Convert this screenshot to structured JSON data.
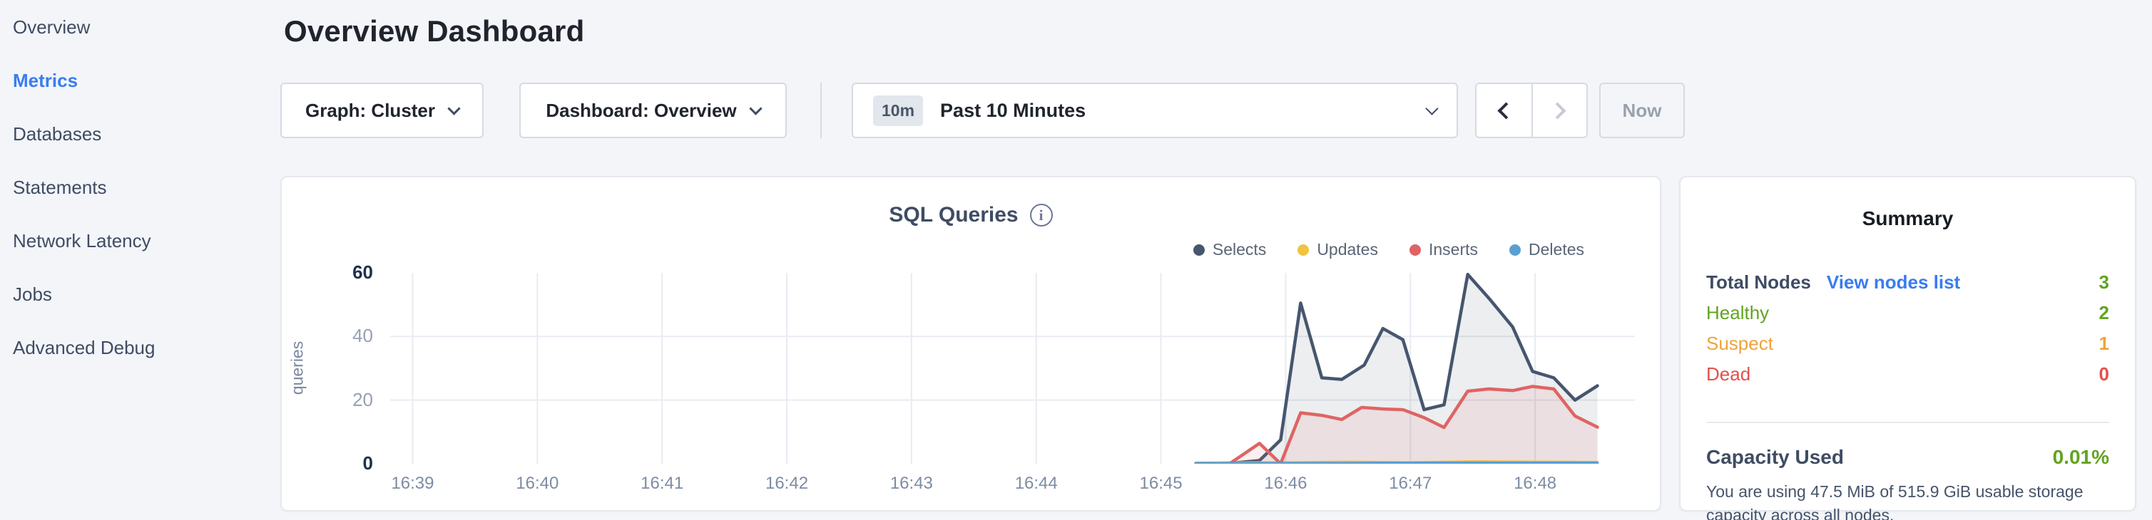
{
  "sidebar": {
    "items": [
      {
        "label": "Overview",
        "active": false
      },
      {
        "label": "Metrics",
        "active": true
      },
      {
        "label": "Databases",
        "active": false
      },
      {
        "label": "Statements",
        "active": false
      },
      {
        "label": "Network Latency",
        "active": false
      },
      {
        "label": "Jobs",
        "active": false
      },
      {
        "label": "Advanced Debug",
        "active": false
      }
    ]
  },
  "header": {
    "title": "Overview Dashboard"
  },
  "controls": {
    "graph_dropdown": "Graph: Cluster",
    "dashboard_dropdown": "Dashboard: Overview",
    "time_range_badge": "10m",
    "time_range_label": "Past 10 Minutes",
    "now_label": "Now",
    "icons": {
      "dropdown_caret": "chevron-down",
      "prev": "chevron-left",
      "next": "chevron-right"
    },
    "prev_enabled": true,
    "next_enabled": false
  },
  "chart_data": {
    "type": "area",
    "title": "SQL Queries",
    "info_icon": "i",
    "ylabel": "queries",
    "ylim": [
      0,
      60
    ],
    "y_ticks": [
      60,
      40,
      20,
      0
    ],
    "y_gridlines": [
      40,
      20
    ],
    "x_ticks": [
      "16:39",
      "16:40",
      "16:41",
      "16:42",
      "16:43",
      "16:44",
      "16:45",
      "16:46",
      "16:47",
      "16:48"
    ],
    "x_domain_minutes": [
      -0.18,
      9.8
    ],
    "grid": true,
    "legend_position": "top-right",
    "series": [
      {
        "name": "Selects",
        "color": "#47566e",
        "fill": "rgba(71,86,110,0.10)",
        "stroke_width": 4.5,
        "points": [
          [
            6.28,
            0
          ],
          [
            6.6,
            0.3
          ],
          [
            6.79,
            1
          ],
          [
            6.96,
            7.5
          ],
          [
            7.12,
            50.5
          ],
          [
            7.29,
            27
          ],
          [
            7.45,
            26.5
          ],
          [
            7.63,
            31
          ],
          [
            7.78,
            42.5
          ],
          [
            7.94,
            39
          ],
          [
            8.11,
            17
          ],
          [
            8.27,
            18.5
          ],
          [
            8.46,
            59.5
          ],
          [
            8.63,
            52
          ],
          [
            8.82,
            43
          ],
          [
            8.98,
            29
          ],
          [
            9.15,
            27
          ],
          [
            9.32,
            20
          ],
          [
            9.5,
            24.5
          ]
        ]
      },
      {
        "name": "Updates",
        "color": "#f0c441",
        "fill": null,
        "stroke_width": 3.5,
        "points": [
          [
            6.28,
            0.3
          ],
          [
            7.0,
            0.4
          ],
          [
            7.5,
            0.6
          ],
          [
            8.0,
            0.4
          ],
          [
            8.5,
            0.7
          ],
          [
            9.0,
            0.6
          ],
          [
            9.5,
            0.5
          ]
        ]
      },
      {
        "name": "Inserts",
        "color": "#df6464",
        "fill": "rgba(223,100,100,0.10)",
        "stroke_width": 4.5,
        "points": [
          [
            6.28,
            0
          ],
          [
            6.55,
            0
          ],
          [
            6.79,
            6.4
          ],
          [
            6.96,
            0
          ],
          [
            7.12,
            16
          ],
          [
            7.29,
            15.2
          ],
          [
            7.45,
            13.9
          ],
          [
            7.61,
            17.7
          ],
          [
            7.78,
            17.2
          ],
          [
            7.94,
            17
          ],
          [
            8.11,
            14.5
          ],
          [
            8.27,
            11.4
          ],
          [
            8.46,
            22.8
          ],
          [
            8.63,
            23.5
          ],
          [
            8.82,
            23
          ],
          [
            8.98,
            24.3
          ],
          [
            9.15,
            23.5
          ],
          [
            9.32,
            15
          ],
          [
            9.5,
            11.5
          ]
        ]
      },
      {
        "name": "Deletes",
        "color": "#599fd2",
        "fill": null,
        "stroke_width": 3.5,
        "points": [
          [
            6.28,
            0.2
          ],
          [
            7.0,
            0.2
          ],
          [
            7.5,
            0.2
          ],
          [
            8.0,
            0.3
          ],
          [
            8.5,
            0.3
          ],
          [
            9.0,
            0.3
          ],
          [
            9.5,
            0.3
          ]
        ]
      }
    ]
  },
  "summary": {
    "title": "Summary",
    "rows": [
      {
        "label": "Total Nodes",
        "label_style": "heading",
        "link": "View nodes list",
        "value": "3",
        "color": "green"
      },
      {
        "label": "Healthy",
        "label_color": "green",
        "value": "2",
        "color": "green"
      },
      {
        "label": "Suspect",
        "label_color": "orange",
        "value": "1",
        "color": "orange"
      },
      {
        "label": "Dead",
        "label_color": "red",
        "value": "0",
        "color": "red"
      }
    ],
    "capacity_label": "Capacity Used",
    "capacity_value": "0.01%",
    "capacity_value_color": "green",
    "capacity_description": "You are using 47.5 MiB of 515.9 GiB usable storage capacity across all nodes."
  },
  "colors": {
    "green": "#62a420",
    "orange": "#efa33b",
    "red": "#e4504b",
    "link_blue": "#3a7cf0",
    "heading": "#3f4c63",
    "page_bg": "#f3f5f9"
  }
}
